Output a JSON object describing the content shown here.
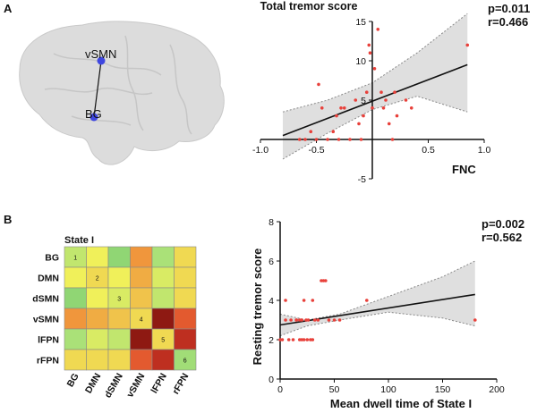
{
  "figure": {
    "panel_a_label": "A",
    "panel_b_label": "B"
  },
  "brain": {
    "node_top_label": "vSMN",
    "node_bottom_label": "BG",
    "node_color": "#3f47e0"
  },
  "heatmap": {
    "title": "State I",
    "rows": [
      "BG",
      "DMN",
      "dSMN",
      "vSMN",
      "lFPN",
      "rFPN"
    ],
    "cols": [
      "BG",
      "DMN",
      "dSMN",
      "vSMN",
      "lFPN",
      "rFPN"
    ],
    "diag_labels": [
      "1",
      "2",
      "3",
      "4",
      "5",
      "6"
    ],
    "values": [
      [
        0.4,
        0.5,
        0.2,
        0.7,
        0.35,
        0.55
      ],
      [
        0.5,
        0.55,
        0.5,
        0.65,
        0.45,
        0.55
      ],
      [
        0.2,
        0.5,
        0.45,
        0.6,
        0.4,
        0.55
      ],
      [
        0.7,
        0.65,
        0.6,
        0.55,
        0.98,
        0.8
      ],
      [
        0.35,
        0.45,
        0.4,
        0.98,
        0.55,
        0.9
      ],
      [
        0.55,
        0.55,
        0.55,
        0.8,
        0.9,
        0.3
      ]
    ]
  },
  "chart_data": [
    {
      "type": "scatter",
      "title": "Total tremor score",
      "xlabel": "FNC",
      "ylabel": "",
      "xlim": [
        -1.0,
        1.0
      ],
      "ylim": [
        -5,
        15
      ],
      "xticks": [
        "-1.0",
        "-0.5",
        "0.5",
        "1.0"
      ],
      "yticks": [
        "-5",
        "5",
        "10",
        "15"
      ],
      "p_text": "p=0.011",
      "r_text": "r=0.466",
      "fit": {
        "x": [
          -0.8,
          0.85
        ],
        "y": [
          0.5,
          9.5
        ]
      },
      "ci_upper": [
        [
          -0.8,
          3.5
        ],
        [
          -0.4,
          5.0
        ],
        [
          0.0,
          7.2
        ],
        [
          0.4,
          11.0
        ],
        [
          0.85,
          16.0
        ]
      ],
      "ci_lower": [
        [
          -0.8,
          -2.5
        ],
        [
          -0.4,
          0.8
        ],
        [
          0.0,
          3.8
        ],
        [
          0.4,
          5.5
        ],
        [
          0.85,
          3.5
        ]
      ],
      "points": [
        [
          -0.65,
          0
        ],
        [
          -0.6,
          0
        ],
        [
          -0.55,
          1
        ],
        [
          -0.5,
          0
        ],
        [
          -0.48,
          7
        ],
        [
          -0.45,
          4
        ],
        [
          -0.4,
          0
        ],
        [
          -0.35,
          1
        ],
        [
          -0.32,
          3
        ],
        [
          -0.3,
          0
        ],
        [
          -0.28,
          4
        ],
        [
          -0.25,
          4
        ],
        [
          -0.2,
          0
        ],
        [
          -0.15,
          5
        ],
        [
          -0.12,
          2
        ],
        [
          -0.1,
          0
        ],
        [
          -0.08,
          3
        ],
        [
          -0.05,
          6
        ],
        [
          -0.03,
          12
        ],
        [
          -0.02,
          11
        ],
        [
          0.0,
          4
        ],
        [
          0.02,
          9
        ],
        [
          0.05,
          14
        ],
        [
          0.08,
          6
        ],
        [
          0.1,
          4
        ],
        [
          0.12,
          5
        ],
        [
          0.15,
          2
        ],
        [
          0.18,
          0
        ],
        [
          0.2,
          6
        ],
        [
          0.22,
          3
        ],
        [
          0.3,
          5
        ],
        [
          0.35,
          4
        ],
        [
          0.85,
          12
        ]
      ]
    },
    {
      "type": "scatter",
      "title": "",
      "xlabel": "Mean dwell time of State I",
      "ylabel": "Resting tremor score",
      "xlim": [
        0,
        200
      ],
      "ylim": [
        0,
        8
      ],
      "xticks": [
        "0",
        "50",
        "100",
        "150",
        "200"
      ],
      "yticks": [
        "0",
        "2",
        "4",
        "6",
        "8"
      ],
      "p_text": "p=0.002",
      "r_text": "r=0.562",
      "fit": {
        "x": [
          0,
          180
        ],
        "y": [
          2.75,
          4.3
        ]
      },
      "ci_upper": [
        [
          0,
          3.3
        ],
        [
          25,
          3.0
        ],
        [
          55,
          3.3
        ],
        [
          100,
          4.2
        ],
        [
          150,
          5.2
        ],
        [
          180,
          6.0
        ]
      ],
      "ci_lower": [
        [
          0,
          2.2
        ],
        [
          25,
          2.7
        ],
        [
          55,
          3.0
        ],
        [
          100,
          3.4
        ],
        [
          150,
          3.1
        ],
        [
          180,
          2.7
        ]
      ],
      "points": [
        [
          0,
          2
        ],
        [
          2,
          2
        ],
        [
          5,
          3
        ],
        [
          5,
          4
        ],
        [
          8,
          2
        ],
        [
          10,
          3
        ],
        [
          12,
          2
        ],
        [
          15,
          3
        ],
        [
          15,
          3
        ],
        [
          18,
          2
        ],
        [
          18,
          3
        ],
        [
          20,
          2
        ],
        [
          20,
          3
        ],
        [
          22,
          2
        ],
        [
          22,
          4
        ],
        [
          24,
          3
        ],
        [
          25,
          2
        ],
        [
          26,
          3
        ],
        [
          28,
          2
        ],
        [
          30,
          4
        ],
        [
          30,
          2
        ],
        [
          32,
          3
        ],
        [
          35,
          3
        ],
        [
          38,
          5
        ],
        [
          40,
          5
        ],
        [
          42,
          5
        ],
        [
          45,
          3
        ],
        [
          50,
          3
        ],
        [
          55,
          3
        ],
        [
          80,
          4
        ],
        [
          180,
          3
        ]
      ]
    }
  ],
  "colors": {
    "point": "#e8403a",
    "band": "#d9d9d9",
    "fit": "#111111",
    "brain": "#dcdcdc"
  }
}
